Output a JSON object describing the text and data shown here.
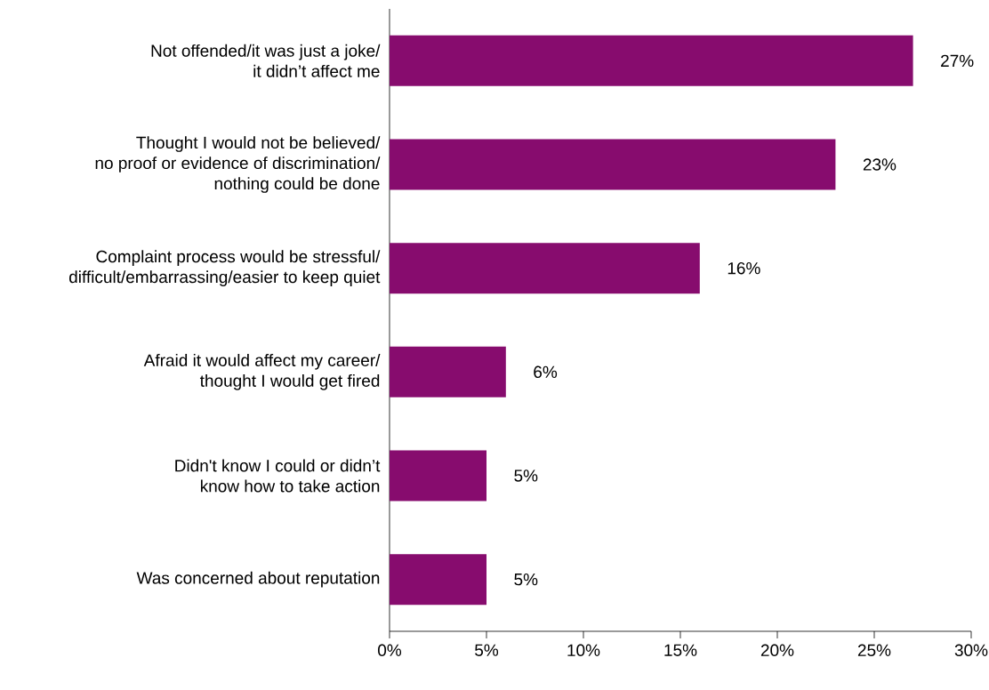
{
  "chart_data": {
    "type": "bar",
    "orientation": "horizontal",
    "categories": [
      "Not offended/it was just a joke/\nit didn’t affect me",
      "Thought I would not be believed/\nno proof or evidence of discrimination/\nnothing could be done",
      "Complaint process would be stressful/\ndifficult/embarrassing/easier to keep quiet",
      "Afraid it would affect my career/\nthought I would get fired",
      "Didn't know I could or didn’t\nknow how to take action",
      "Was concerned about reputation"
    ],
    "values": [
      27,
      23,
      16,
      6,
      5,
      5
    ],
    "value_labels": [
      "27%",
      "23%",
      "16%",
      "6%",
      "5%",
      "5%"
    ],
    "color": "#870c6e",
    "xlim": [
      0,
      30
    ],
    "xticks": [
      {
        "value": 0,
        "label": "0%"
      },
      {
        "value": 5,
        "label": "5%"
      },
      {
        "value": 10,
        "label": "10%"
      },
      {
        "value": 15,
        "label": "15%"
      },
      {
        "value": 20,
        "label": "20%"
      },
      {
        "value": 25,
        "label": "25%"
      },
      {
        "value": 30,
        "label": "30%"
      }
    ]
  }
}
